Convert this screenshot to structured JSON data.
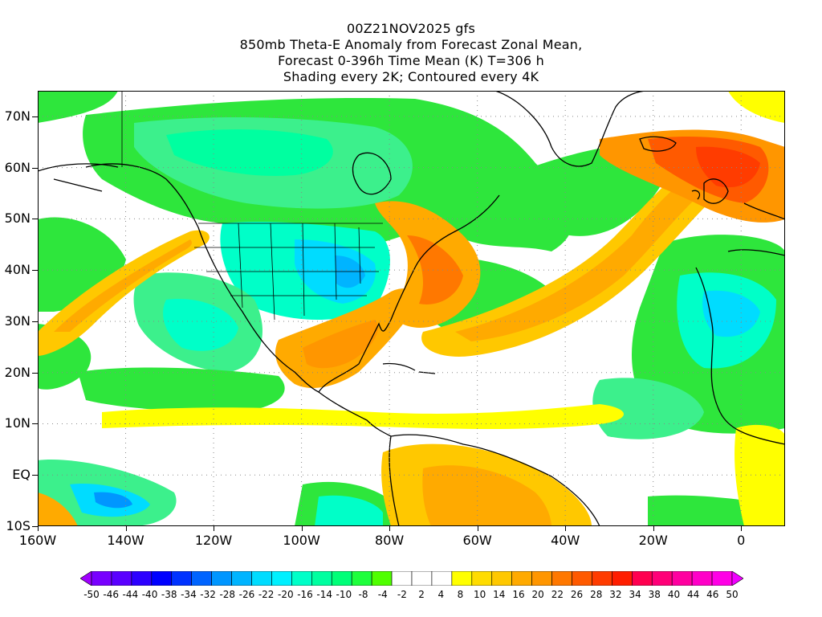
{
  "header": {
    "line1": "00Z21NOV2025 gfs",
    "line2": "850mb Theta-E Anomaly from Forecast Zonal Mean,",
    "line3": "Forecast 0-396h Time Mean (K) T=306 h",
    "line4": "Shading every 2K; Contoured every 4K"
  },
  "axes": {
    "lon_min": -160,
    "lon_max": 10,
    "lat_min": -10,
    "lat_max": 75,
    "y_labels": [
      "70N",
      "60N",
      "50N",
      "40N",
      "30N",
      "20N",
      "10N",
      "EQ",
      "10S"
    ],
    "y_values": [
      70,
      60,
      50,
      40,
      30,
      20,
      10,
      0,
      -10
    ],
    "x_labels": [
      "160W",
      "140W",
      "120W",
      "100W",
      "80W",
      "60W",
      "40W",
      "20W",
      "0"
    ],
    "x_values": [
      -160,
      -140,
      -120,
      -100,
      -80,
      -60,
      -40,
      -20,
      0
    ],
    "grid": "dotted"
  },
  "colorbar": {
    "labels": [
      "-50",
      "-46",
      "-44",
      "-40",
      "-38",
      "-34",
      "-32",
      "-28",
      "-26",
      "-22",
      "-20",
      "-16",
      "-14",
      "-10",
      "-8",
      "-4",
      "-2",
      "2",
      "4",
      "8",
      "10",
      "14",
      "16",
      "20",
      "22",
      "26",
      "28",
      "32",
      "34",
      "38",
      "40",
      "44",
      "46",
      "50"
    ],
    "colors": [
      "#a000ff",
      "#7800ff",
      "#5a00ff",
      "#2d00ff",
      "#0000ff",
      "#0032ff",
      "#0064ff",
      "#0096ff",
      "#00b4ff",
      "#00dcff",
      "#00f0ff",
      "#00ffc8",
      "#00ffa0",
      "#00ff78",
      "#1eff3c",
      "#50ff00",
      "#ffffff",
      "#ffffff",
      "#ffffff",
      "#ffff00",
      "#ffdc00",
      "#ffc800",
      "#ffaa00",
      "#ff9600",
      "#ff7800",
      "#ff5a00",
      "#ff3c00",
      "#ff1e00",
      "#ff0050",
      "#ff0078",
      "#ff00a0",
      "#ff00c8",
      "#ff00e6",
      "#f000ff"
    ]
  }
}
